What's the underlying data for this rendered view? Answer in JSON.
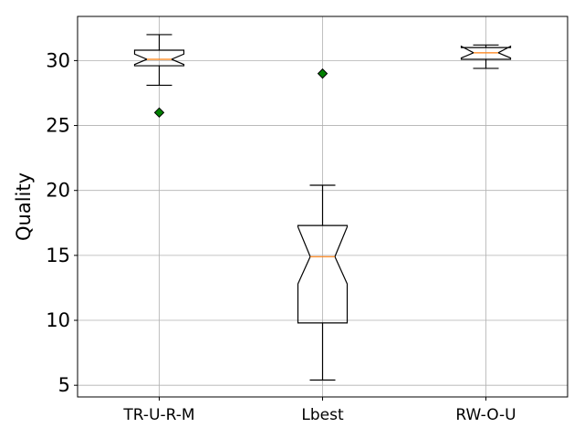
{
  "chart_data": {
    "type": "boxplot",
    "ylabel": "Quality",
    "xlabel": "",
    "title": "",
    "ylim": [
      4.1,
      33.4
    ],
    "yticks": [
      5,
      10,
      15,
      20,
      25,
      30
    ],
    "grid": true,
    "notched": true,
    "categories": [
      "TR-U-R-M",
      "Lbest",
      "RW-O-U"
    ],
    "boxes": [
      {
        "whisker_low": 28.1,
        "q1": 29.6,
        "median": 30.1,
        "q3": 30.8,
        "whisker_high": 32.0,
        "notch_low": 29.7,
        "notch_high": 30.5,
        "outliers": [
          26.0
        ]
      },
      {
        "whisker_low": 5.4,
        "q1": 9.8,
        "median": 14.9,
        "q3": 17.3,
        "whisker_high": 20.4,
        "notch_low": 12.8,
        "notch_high": 17.2,
        "outliers": [
          29.0
        ]
      },
      {
        "whisker_low": 29.4,
        "q1": 30.1,
        "median": 30.6,
        "q3": 31.0,
        "whisker_high": 31.2,
        "notch_low": 30.2,
        "notch_high": 31.1,
        "outliers": []
      }
    ],
    "colors": {
      "box": "#000000",
      "median": "#ff7f0e",
      "outlier_fill": "#008000",
      "grid": "#b0b0b0"
    }
  }
}
